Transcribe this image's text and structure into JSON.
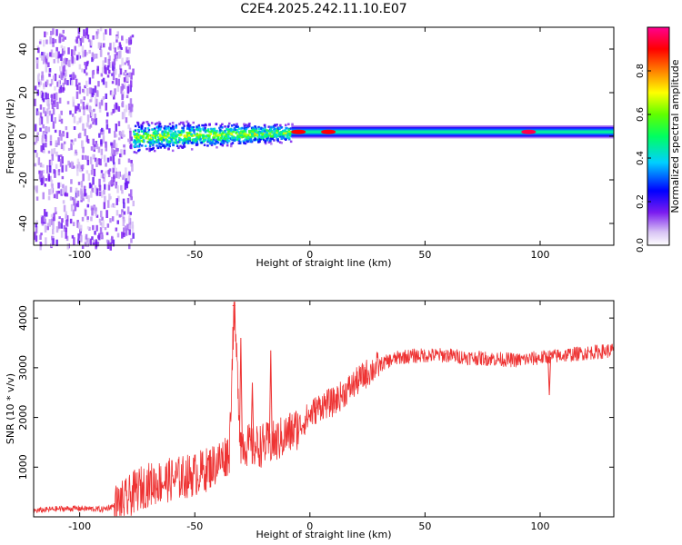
{
  "title": "C2E4.2025.242.11.10.E07",
  "chart_data": [
    {
      "type": "heatmap",
      "xlabel": "Height of straight line (km)",
      "ylabel": "Frequency (Hz)",
      "xlim": [
        -120,
        132
      ],
      "ylim": [
        -50,
        50
      ],
      "xticks": [
        -100,
        -50,
        0,
        50,
        100
      ],
      "yticks": [
        -40,
        -20,
        0,
        20,
        40
      ],
      "colorbar": {
        "label": "Normalized spectral amplitude",
        "range": [
          0,
          1
        ],
        "ticks": [
          0.0,
          0.2,
          0.4,
          0.6,
          0.8
        ],
        "tick_labels": [
          "0.0",
          "0.2",
          "0.4",
          "0.6",
          "0.8"
        ]
      },
      "band": {
        "center_hz": 2,
        "segments": [
          {
            "x_from": -120,
            "x_to": -77,
            "description": "diffuse noise spread across all frequencies",
            "amplitude": 0.1
          },
          {
            "x_from": -77,
            "x_to": -8,
            "description": "broad band about 0 Hz",
            "half_width_hz": 8,
            "peak_amplitude": 0.5
          },
          {
            "x_from": -8,
            "x_to": 132,
            "description": "narrow band near 2 Hz",
            "half_width_hz": 3,
            "peak_amplitude": 0.45
          }
        ],
        "hotspots": [
          {
            "x": -5,
            "amplitude": 0.9
          },
          {
            "x": 8,
            "amplitude": 0.9
          },
          {
            "x": 95,
            "amplitude": 0.95
          }
        ]
      }
    },
    {
      "type": "line",
      "xlabel": "Height of straight line (km)",
      "ylabel": "SNR (10 * v/v)",
      "xlim": [
        -120,
        132
      ],
      "ylim": [
        0,
        4350
      ],
      "xticks": [
        -100,
        -50,
        0,
        50,
        100
      ],
      "yticks": [
        1000,
        2000,
        3000,
        4000
      ],
      "series": [
        {
          "name": "SNR",
          "color": "#ee3333",
          "x": [
            -120,
            -110,
            -100,
            -90,
            -85,
            -80,
            -75,
            -70,
            -60,
            -50,
            -45,
            -40,
            -35,
            -33,
            -30,
            -25,
            -20,
            -15,
            -10,
            -5,
            0,
            5,
            10,
            15,
            20,
            25,
            30,
            35,
            40,
            50,
            60,
            70,
            80,
            90,
            100,
            110,
            120,
            132
          ],
          "values": [
            120,
            160,
            170,
            150,
            220,
            320,
            550,
            650,
            750,
            850,
            950,
            1100,
            1300,
            4250,
            1500,
            1400,
            1450,
            1500,
            1650,
            1800,
            2050,
            2250,
            2300,
            2500,
            2700,
            2900,
            3050,
            3150,
            3220,
            3250,
            3250,
            3200,
            3180,
            3150,
            3200,
            3250,
            3300,
            3350
          ],
          "spikes": [
            {
              "x": -33,
              "value": 4250
            },
            {
              "x": -30,
              "value": 3600
            },
            {
              "x": -17,
              "value": 3350
            },
            {
              "x": -25,
              "value": 2700
            },
            {
              "x": 104,
              "value": 2450
            }
          ]
        }
      ]
    }
  ]
}
